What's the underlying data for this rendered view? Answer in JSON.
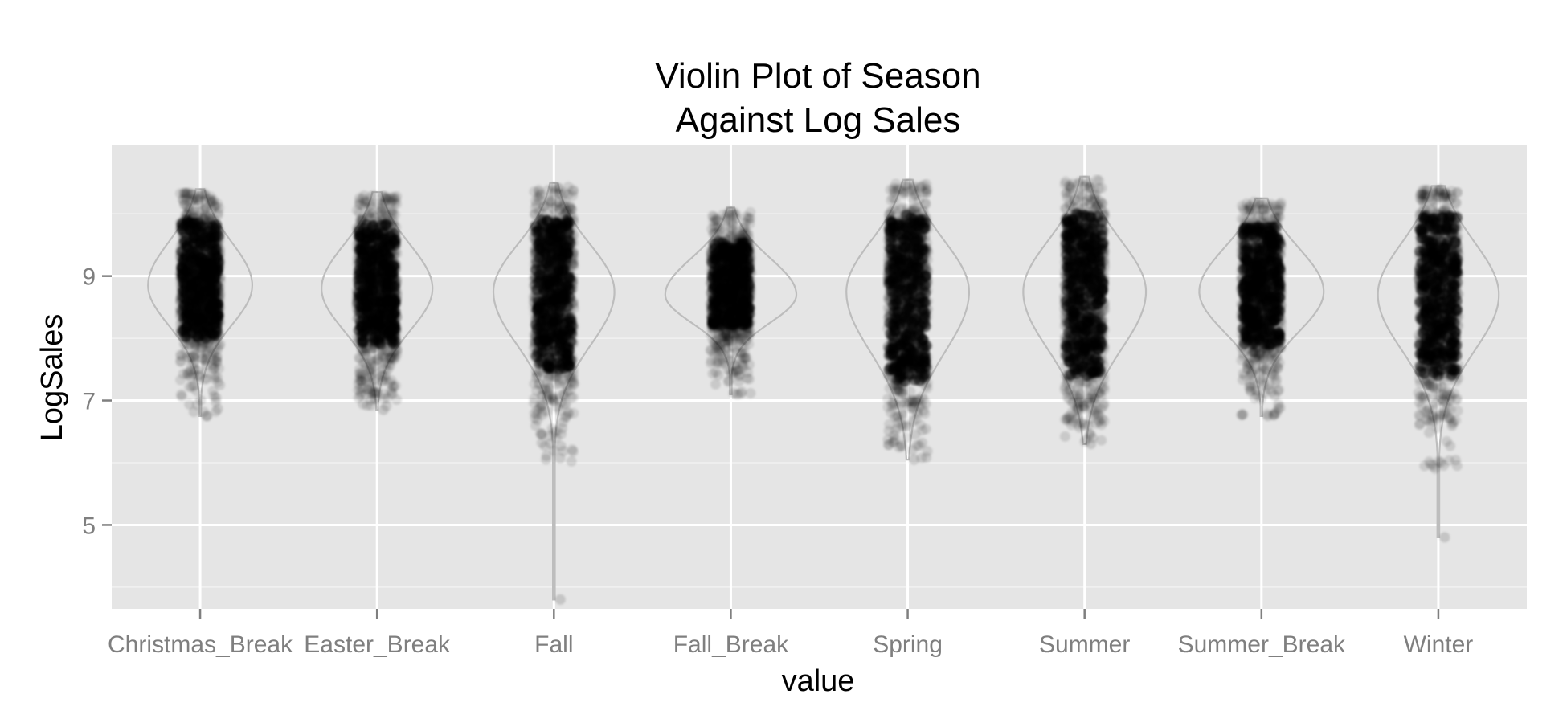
{
  "chart_data": {
    "type": "violin",
    "title_lines": [
      "Violin Plot of Season",
      "Against Log Sales"
    ],
    "xlabel": "value",
    "ylabel": "LogSales",
    "ylim": [
      3.65,
      11.1
    ],
    "y_major_ticks": [
      5,
      7,
      9
    ],
    "y_minor_ticks": [
      4,
      6,
      8,
      10
    ],
    "grid": true,
    "legend": "none",
    "colors": {
      "panel": "#E5E5E5",
      "grid_major": "#FFFFFF",
      "grid_minor": "#F2F2F2",
      "violin_outline": "#BDBDBD",
      "points": "#000000",
      "tick_text": "#7F7F7F"
    },
    "categories": [
      "Christmas_Break",
      "Easter_Break",
      "Fall",
      "Fall_Break",
      "Spring",
      "Summer",
      "Summer_Break",
      "Winter"
    ],
    "series": [
      {
        "category": "Christmas_Break",
        "min": 6.75,
        "max": 10.4,
        "q05": 7.7,
        "q95": 10.1,
        "median": 8.85,
        "max_half_width": 0.62
      },
      {
        "category": "Easter_Break",
        "min": 6.85,
        "max": 10.35,
        "q05": 7.6,
        "q95": 10.05,
        "median": 8.8,
        "max_half_width": 0.66
      },
      {
        "category": "Fall",
        "min": 3.8,
        "max": 10.5,
        "q05": 7.2,
        "q95": 10.1,
        "median": 8.75,
        "max_half_width": 0.72
      },
      {
        "category": "Fall_Break",
        "min": 7.1,
        "max": 10.1,
        "q05": 7.9,
        "q95": 9.75,
        "median": 8.7,
        "max_half_width": 0.78
      },
      {
        "category": "Spring",
        "min": 6.05,
        "max": 10.55,
        "q05": 7.0,
        "q95": 10.2,
        "median": 8.75,
        "max_half_width": 0.73
      },
      {
        "category": "Summer",
        "min": 6.3,
        "max": 10.6,
        "q05": 7.1,
        "q95": 10.2,
        "median": 8.75,
        "max_half_width": 0.73
      },
      {
        "category": "Summer_Break",
        "min": 6.75,
        "max": 10.25,
        "q05": 7.6,
        "q95": 10.0,
        "median": 8.75,
        "max_half_width": 0.74
      },
      {
        "category": "Winter",
        "min": 4.8,
        "max": 10.45,
        "q05": 7.1,
        "q95": 10.2,
        "median": 8.7,
        "max_half_width": 0.72
      }
    ]
  }
}
